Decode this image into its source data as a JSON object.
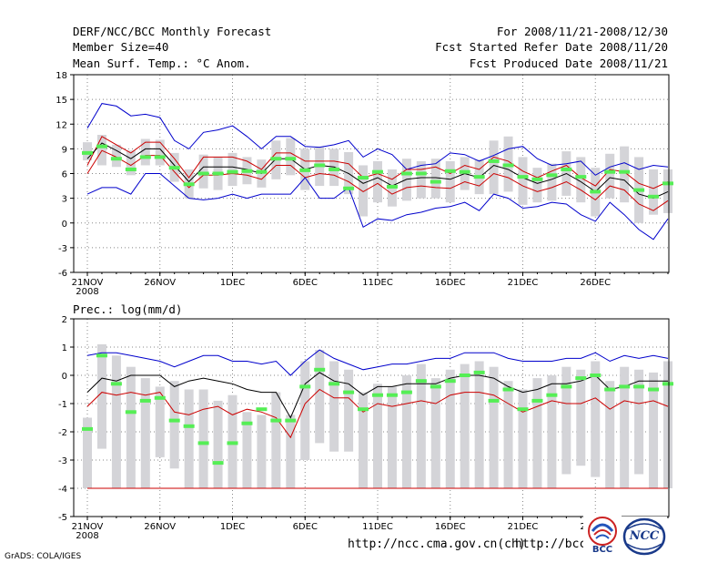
{
  "header": {
    "title": "DERF/NCC/BCC Monthly Forecast",
    "member_size": "Member Size=40",
    "variable_top": "Mean Surf. Temp.: °C Anom.",
    "period": "For 2008/11/21-2008/12/30",
    "start_date": "Fcst Started Refer Date 2008/11/20",
    "produced_date": "Fcst Produced Date 2008/11/21"
  },
  "footer": {
    "url_left": "http://ncc.cma.gov.cn(ch)",
    "url_right": "http://bcc.c",
    "credit": "GrADS: COLA/IGES",
    "logo_bcc": "BCC",
    "logo_ncc": "NCC"
  },
  "colors": {
    "max_line": "#0000cc",
    "min_line": "#cc0000",
    "mean_line": "#000000",
    "ensemble_bar": "#d4d4d8",
    "observed_mark": "#55ee55",
    "grid": "#888888"
  },
  "chart_data": [
    {
      "type": "line",
      "id": "temperature",
      "title": "",
      "ylabel": "Mean Surf. Temp.: °C Anom.",
      "ylim": [
        -6,
        18
      ],
      "yticks": [
        -6,
        -3,
        0,
        3,
        6,
        9,
        12,
        15,
        18
      ],
      "xticks": [
        {
          "label": "21NOV",
          "day": 0,
          "sub": "2008"
        },
        {
          "label": "26NOV",
          "day": 5
        },
        {
          "label": "1DEC",
          "day": 10
        },
        {
          "label": "6DEC",
          "day": 15
        },
        {
          "label": "11DEC",
          "day": 20
        },
        {
          "label": "16DEC",
          "day": 25
        },
        {
          "label": "21DEC",
          "day": 30
        },
        {
          "label": "26DEC",
          "day": 35
        }
      ],
      "grid": true,
      "series": [
        {
          "name": "max",
          "color": "#0000cc",
          "values": [
            11.5,
            14.5,
            14.2,
            13.0,
            13.2,
            12.8,
            10.0,
            9.0,
            11.0,
            11.3,
            11.8,
            10.5,
            9.0,
            10.5,
            10.5,
            9.3,
            9.2,
            9.5,
            10.0,
            8.0,
            9.0,
            8.3,
            6.5,
            7.0,
            7.2,
            8.5,
            8.3,
            7.5,
            8.2,
            9.0,
            9.3,
            7.8,
            7.0,
            7.2,
            7.5,
            5.8,
            6.8,
            7.3,
            6.5,
            7.0,
            6.8
          ]
        },
        {
          "name": "upper",
          "color": "#cc0000",
          "values": [
            7.0,
            10.5,
            9.5,
            8.5,
            9.8,
            9.8,
            7.8,
            5.5,
            8.0,
            8.0,
            8.0,
            7.5,
            6.5,
            8.5,
            8.5,
            7.5,
            7.5,
            7.5,
            7.2,
            5.5,
            6.0,
            5.3,
            6.5,
            6.5,
            6.8,
            6.0,
            7.0,
            6.5,
            8.0,
            7.5,
            6.3,
            5.5,
            6.3,
            7.0,
            5.5,
            4.5,
            6.5,
            6.2,
            4.8,
            4.2,
            5.0
          ]
        },
        {
          "name": "mean",
          "color": "#000000",
          "values": [
            7.8,
            9.7,
            8.8,
            7.8,
            9.0,
            9.0,
            7.0,
            5.0,
            6.8,
            6.8,
            6.8,
            6.5,
            6.0,
            7.8,
            7.8,
            6.5,
            7.0,
            6.8,
            6.0,
            4.8,
            5.5,
            4.5,
            5.3,
            5.5,
            5.5,
            5.3,
            6.0,
            5.5,
            7.0,
            6.5,
            5.5,
            4.8,
            5.3,
            6.0,
            5.0,
            3.8,
            5.5,
            5.2,
            3.5,
            3.0,
            3.8
          ]
        },
        {
          "name": "lower",
          "color": "#cc0000",
          "values": [
            6.0,
            8.8,
            8.0,
            7.0,
            8.2,
            8.2,
            6.2,
            4.3,
            5.8,
            5.8,
            6.0,
            5.8,
            5.3,
            7.0,
            7.0,
            5.5,
            6.0,
            5.8,
            5.0,
            3.8,
            4.8,
            3.5,
            4.3,
            4.5,
            4.3,
            4.2,
            5.0,
            4.5,
            6.0,
            5.5,
            4.5,
            3.8,
            4.3,
            5.0,
            4.0,
            2.8,
            4.5,
            4.0,
            2.3,
            1.5,
            2.7
          ]
        },
        {
          "name": "min",
          "color": "#0000cc",
          "values": [
            3.5,
            4.3,
            4.3,
            3.5,
            6.0,
            6.0,
            4.5,
            3.0,
            2.8,
            3.0,
            3.5,
            3.0,
            3.5,
            3.5,
            3.5,
            5.5,
            3.0,
            3.0,
            4.3,
            -0.5,
            0.5,
            0.3,
            1.0,
            1.3,
            1.8,
            2.0,
            2.5,
            1.5,
            3.5,
            3.0,
            1.8,
            2.0,
            2.5,
            2.3,
            1.0,
            0.2,
            2.5,
            1.0,
            -0.8,
            -2.0,
            0.5
          ]
        }
      ],
      "ensemble_bars": [
        [
          7.6,
          9.8
        ],
        [
          7.0,
          10.7
        ],
        [
          6.8,
          9.5
        ],
        [
          5.8,
          8.8
        ],
        [
          7.0,
          10.2
        ],
        [
          7.0,
          10.1
        ],
        [
          5.0,
          8.5
        ],
        [
          3.0,
          6.5
        ],
        [
          4.2,
          8.3
        ],
        [
          4.0,
          8.0
        ],
        [
          4.5,
          8.5
        ],
        [
          4.7,
          8.0
        ],
        [
          4.3,
          7.7
        ],
        [
          5.3,
          10.0
        ],
        [
          5.8,
          10.3
        ],
        [
          4.0,
          9.0
        ],
        [
          4.5,
          9.2
        ],
        [
          4.5,
          9.0
        ],
        [
          3.5,
          8.6
        ],
        [
          0.8,
          7.0
        ],
        [
          2.5,
          7.5
        ],
        [
          2.0,
          6.5
        ],
        [
          2.7,
          7.8
        ],
        [
          3.0,
          7.5
        ],
        [
          3.0,
          7.8
        ],
        [
          2.5,
          7.5
        ],
        [
          4.0,
          8.0
        ],
        [
          3.5,
          7.7
        ],
        [
          3.5,
          10.0
        ],
        [
          3.8,
          10.5
        ],
        [
          2.2,
          8.0
        ],
        [
          2.5,
          6.7
        ],
        [
          2.7,
          7.2
        ],
        [
          3.3,
          8.7
        ],
        [
          2.5,
          8.0
        ],
        [
          0.8,
          6.7
        ],
        [
          3.0,
          8.4
        ],
        [
          2.5,
          9.3
        ],
        [
          0.0,
          8.0
        ],
        [
          1.0,
          6.5
        ],
        [
          1.2,
          6.5
        ]
      ],
      "observed": [
        8.5,
        9.3,
        7.8,
        6.5,
        8.0,
        8.0,
        6.7,
        4.7,
        6.0,
        6.0,
        6.2,
        6.3,
        6.2,
        7.8,
        7.8,
        6.4,
        7.0,
        6.5,
        4.2,
        5.5,
        6.2,
        4.4,
        6.0,
        6.0,
        5.0,
        6.3,
        6.2,
        5.6,
        7.5,
        7.0,
        5.6,
        5.3,
        5.8,
        6.5,
        5.6,
        3.8,
        6.2,
        6.2,
        4.0,
        3.2,
        4.8
      ]
    },
    {
      "type": "line",
      "id": "precipitation",
      "title": "Prec.: log(mm/d)",
      "ylabel": "Prec.: log(mm/d)",
      "ylim": [
        -5,
        2
      ],
      "yticks": [
        -5,
        -4,
        -3,
        -2,
        -1,
        0,
        1,
        2
      ],
      "xticks": [
        {
          "label": "21NOV",
          "day": 0,
          "sub": "2008"
        },
        {
          "label": "26NOV",
          "day": 5
        },
        {
          "label": "1DEC",
          "day": 10
        },
        {
          "label": "6DEC",
          "day": 15
        },
        {
          "label": "11DEC",
          "day": 20
        },
        {
          "label": "16DEC",
          "day": 25
        },
        {
          "label": "21DEC",
          "day": 30
        },
        {
          "label": "26DEC",
          "day": 35
        }
      ],
      "grid": true,
      "series": [
        {
          "name": "max",
          "color": "#0000cc",
          "values": [
            0.7,
            0.8,
            0.8,
            0.7,
            0.6,
            0.5,
            0.3,
            0.5,
            0.7,
            0.7,
            0.5,
            0.5,
            0.4,
            0.5,
            0.0,
            0.5,
            0.9,
            0.6,
            0.4,
            0.2,
            0.3,
            0.4,
            0.4,
            0.5,
            0.6,
            0.6,
            0.8,
            0.8,
            0.8,
            0.6,
            0.5,
            0.5,
            0.5,
            0.6,
            0.6,
            0.8,
            0.5,
            0.7,
            0.6,
            0.7,
            0.6
          ]
        },
        {
          "name": "mean",
          "color": "#000000",
          "values": [
            -0.6,
            -0.1,
            -0.2,
            0.0,
            0.0,
            0.0,
            -0.4,
            -0.2,
            -0.1,
            -0.2,
            -0.3,
            -0.5,
            -0.6,
            -0.6,
            -1.5,
            -0.3,
            0.1,
            -0.2,
            -0.3,
            -0.7,
            -0.4,
            -0.4,
            -0.3,
            -0.3,
            -0.3,
            -0.1,
            0.0,
            0.0,
            -0.1,
            -0.4,
            -0.6,
            -0.5,
            -0.3,
            -0.3,
            -0.2,
            0.0,
            -0.5,
            -0.4,
            -0.2,
            -0.2,
            -0.2
          ]
        },
        {
          "name": "min",
          "color": "#cc0000",
          "values": [
            -1.1,
            -0.6,
            -0.7,
            -0.6,
            -0.7,
            -0.6,
            -1.3,
            -1.4,
            -1.2,
            -1.1,
            -1.4,
            -1.2,
            -1.3,
            -1.5,
            -2.2,
            -1.0,
            -0.5,
            -0.8,
            -0.8,
            -1.3,
            -1.0,
            -1.1,
            -1.0,
            -0.9,
            -1.0,
            -0.7,
            -0.6,
            -0.6,
            -0.7,
            -1.0,
            -1.3,
            -1.1,
            -0.9,
            -1.0,
            -1.0,
            -0.8,
            -1.2,
            -0.9,
            -1.0,
            -0.9,
            -1.1
          ]
        },
        {
          "name": "floor",
          "color": "#cc0000",
          "values": [
            -4.0,
            -4.0,
            -4.0,
            -4.0,
            -4.0,
            -4.0,
            -4.0,
            -4.0,
            -4.0,
            -4.0,
            -4.0,
            -4.0,
            -4.0,
            -4.0,
            -4.0,
            -4.0,
            -4.0,
            -4.0,
            -4.0,
            -4.0,
            -4.0,
            -4.0,
            -4.0,
            -4.0,
            -4.0,
            -4.0,
            -4.0,
            -4.0,
            -4.0,
            -4.0,
            -4.0,
            -4.0,
            -4.0,
            -4.0,
            -4.0,
            -4.0,
            -4.0,
            -4.0,
            -4.0,
            -4.0,
            -4.0
          ]
        }
      ],
      "ensemble_bars": [
        [
          -4.0,
          -1.5
        ],
        [
          -2.6,
          1.1
        ],
        [
          -4.0,
          0.7
        ],
        [
          -4.0,
          0.3
        ],
        [
          -4.0,
          -0.1
        ],
        [
          -2.9,
          -0.4
        ],
        [
          -3.3,
          -0.2
        ],
        [
          -4.0,
          -0.5
        ],
        [
          -4.0,
          -0.5
        ],
        [
          -4.0,
          -0.9
        ],
        [
          -4.0,
          -0.7
        ],
        [
          -4.0,
          -1.3
        ],
        [
          -4.0,
          -1.4
        ],
        [
          -4.0,
          -0.6
        ],
        [
          -4.0,
          -1.4
        ],
        [
          -3.0,
          0.5
        ],
        [
          -2.4,
          0.9
        ],
        [
          -2.7,
          0.5
        ],
        [
          -2.7,
          0.2
        ],
        [
          -4.0,
          -0.6
        ],
        [
          -4.0,
          -0.3
        ],
        [
          -4.0,
          -0.4
        ],
        [
          -4.0,
          0.0
        ],
        [
          -4.0,
          0.4
        ],
        [
          -4.0,
          -0.1
        ],
        [
          -4.0,
          0.2
        ],
        [
          -4.0,
          0.4
        ],
        [
          -4.0,
          0.5
        ],
        [
          -4.0,
          0.3
        ],
        [
          -4.0,
          -0.2
        ],
        [
          -4.0,
          -0.5
        ],
        [
          -4.0,
          -0.1
        ],
        [
          -4.0,
          0.0
        ],
        [
          -3.5,
          0.3
        ],
        [
          -3.2,
          0.2
        ],
        [
          -3.6,
          0.5
        ],
        [
          -4.0,
          -0.2
        ],
        [
          -4.0,
          0.3
        ],
        [
          -3.5,
          0.2
        ],
        [
          -4.0,
          0.1
        ],
        [
          -4.0,
          0.5
        ]
      ],
      "observed": [
        -1.9,
        0.7,
        -0.3,
        -1.3,
        -0.9,
        -0.8,
        -1.6,
        -1.8,
        -2.4,
        -3.1,
        -2.4,
        -1.7,
        -1.2,
        -1.6,
        -1.6,
        -0.4,
        0.2,
        -0.3,
        -0.6,
        -1.2,
        -0.7,
        -0.7,
        -0.6,
        -0.2,
        -0.4,
        -0.2,
        0.0,
        0.1,
        -0.9,
        -0.5,
        -1.2,
        -0.9,
        -0.7,
        -0.4,
        -0.1,
        0.0,
        -0.5,
        -0.4,
        -0.4,
        -0.5,
        -0.3
      ]
    }
  ]
}
